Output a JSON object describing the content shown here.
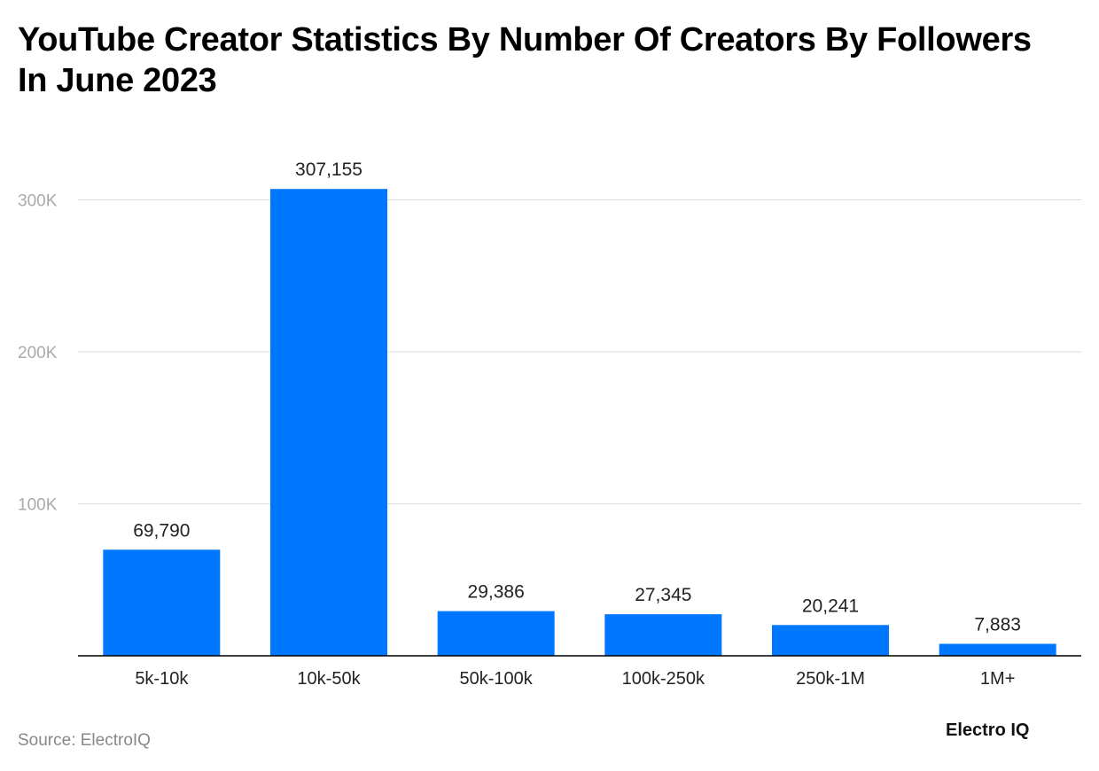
{
  "title": "YouTube Creator Statistics By Number Of Creators By Followers In June 2023",
  "source": "Source: ElectroIQ",
  "logo": "Electro IQ",
  "colors": {
    "bar": "#0077FF",
    "grid": "#DDDDDD",
    "axis": "#000000"
  },
  "chart_data": {
    "type": "bar",
    "title": "YouTube Creator Statistics By Number Of Creators By Followers In June 2023",
    "categories": [
      "5k-10k",
      "10k-50k",
      "50k-100k",
      "100k-250k",
      "250k-1M",
      "1M+"
    ],
    "values": [
      69790,
      307155,
      29386,
      27345,
      20241,
      7883
    ],
    "data_labels": [
      "69,790",
      "307,155",
      "29,386",
      "27,345",
      "20,241",
      "7,883"
    ],
    "yticks": [
      100000,
      200000,
      300000
    ],
    "ytick_labels": [
      "100K",
      "200K",
      "300K"
    ],
    "ylim": [
      0,
      300000
    ],
    "xlabel": "",
    "ylabel": "",
    "grid": true
  }
}
